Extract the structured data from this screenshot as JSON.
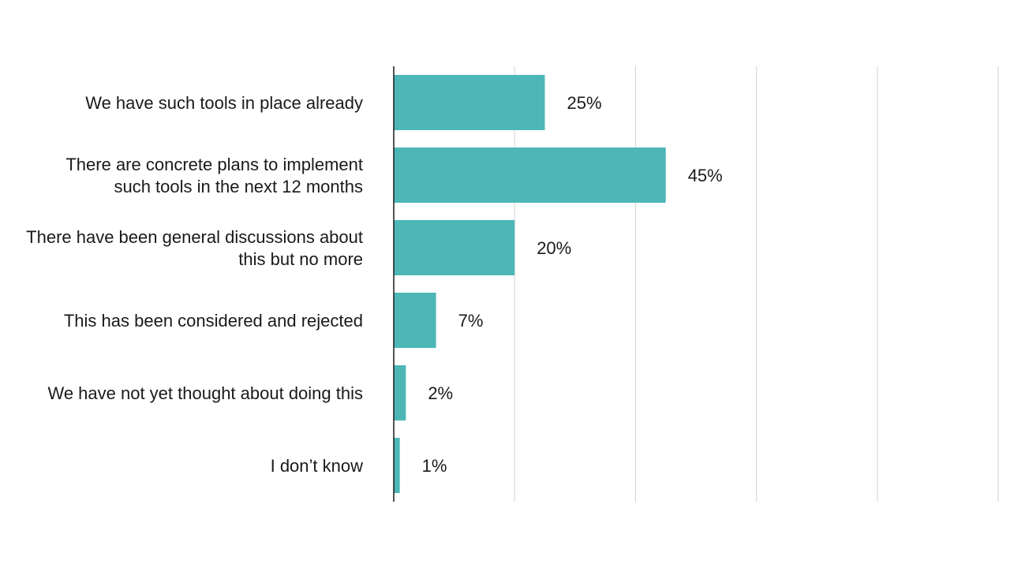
{
  "chart_data": {
    "type": "bar",
    "orientation": "horizontal",
    "title": "",
    "xlabel": "",
    "ylabel": "",
    "categories": [
      [
        "We have such tools in place already"
      ],
      [
        "There are concrete plans to implement",
        "such tools in the next 12 months"
      ],
      [
        "There have been general discussions about",
        "this but no more"
      ],
      [
        "This has been considered and rejected"
      ],
      [
        "We have not yet thought about doing this"
      ],
      [
        "I don’t know"
      ]
    ],
    "values": [
      25,
      45,
      20,
      7,
      2,
      1
    ],
    "value_labels": [
      "25%",
      "45%",
      "20%",
      "7%",
      "2%",
      "1%"
    ],
    "xlim": [
      0,
      100
    ],
    "grid": true,
    "legend": "none",
    "colors": {
      "bar": "#4db6b6",
      "gridline": "#d9d9d9",
      "axis": "#1a1a1a",
      "text": "#1a1a1a"
    }
  }
}
